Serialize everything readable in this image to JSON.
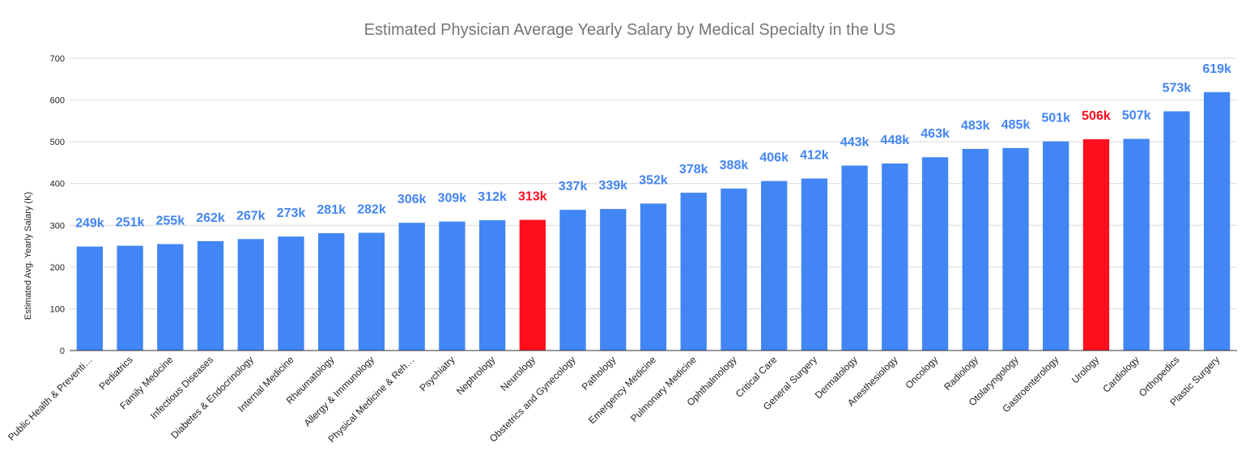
{
  "colors": {
    "bar": "#4285f4",
    "highlight": "#ff0e1e",
    "grid": "#d9d9d9",
    "axis": "#333333",
    "title": "#757575",
    "text": "#222222"
  },
  "chart_data": {
    "type": "bar",
    "title": "Estimated Physician Average Yearly Salary by Medical Specialty in the US",
    "xlabel": "",
    "ylabel": "Estimated Avg. Yearly Salary (K)",
    "ylim": [
      0,
      700
    ],
    "yticks": [
      0,
      100,
      200,
      300,
      400,
      500,
      600,
      700
    ],
    "grid": true,
    "legend": "none",
    "highlighted": [
      "Neurology",
      "Urology"
    ],
    "categories": [
      "Public Health & Preventi…",
      "Pediatrics",
      "Family Medicine",
      "Infectious Diseases",
      "Diabetes & Endocrinology",
      "Internal Medicine",
      "Rheumatology",
      "Allergy & Immunology",
      "Physical Medicine & Reh…",
      "Psychiatry",
      "Nephrology",
      "Neurology",
      "Obstetrics and Gynecology",
      "Pathology",
      "Emergency Medicine",
      "Pulmonary Medicine",
      "Ophthalmology",
      "Critical Care",
      "General Surgery",
      "Dermatology",
      "Anesthesiology",
      "Oncology",
      "Radiology",
      "Otolaryngology",
      "Gastroenterology",
      "Urology",
      "Cardiology",
      "Orthopedics",
      "Plastic Surgery"
    ],
    "values": [
      249,
      251,
      255,
      262,
      267,
      273,
      281,
      282,
      306,
      309,
      312,
      313,
      337,
      339,
      352,
      378,
      388,
      406,
      412,
      443,
      448,
      463,
      483,
      485,
      501,
      506,
      507,
      573,
      619
    ],
    "data_labels": [
      "249k",
      "251k",
      "255k",
      "262k",
      "267k",
      "273k",
      "281k",
      "282k",
      "306k",
      "309k",
      "312k",
      "313k",
      "337k",
      "339k",
      "352k",
      "378k",
      "388k",
      "406k",
      "412k",
      "443k",
      "448k",
      "463k",
      "483k",
      "485k",
      "501k",
      "506k",
      "507k",
      "573k",
      "619k"
    ]
  }
}
